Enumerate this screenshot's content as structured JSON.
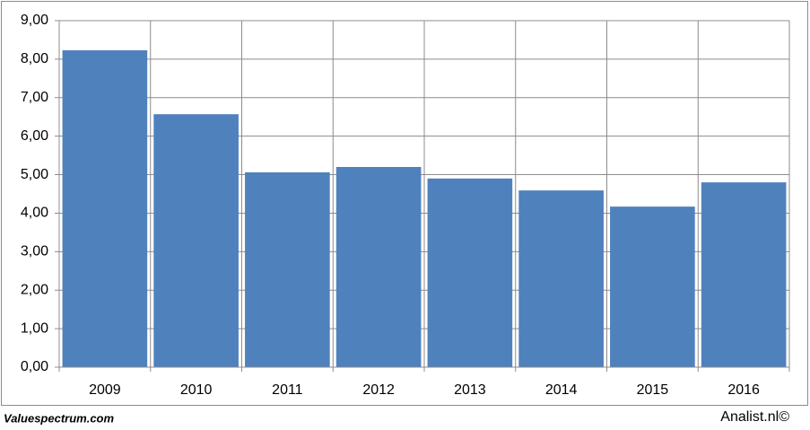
{
  "chart_data": {
    "type": "bar",
    "categories": [
      "2009",
      "2010",
      "2011",
      "2012",
      "2013",
      "2014",
      "2015",
      "2016"
    ],
    "values": [
      8.23,
      6.57,
      5.06,
      5.2,
      4.9,
      4.59,
      4.17,
      4.8
    ],
    "color": "#4f81bd",
    "ylim": [
      0,
      9
    ],
    "yticks": [
      {
        "value": 0,
        "label": "0,00"
      },
      {
        "value": 1,
        "label": "1,00"
      },
      {
        "value": 2,
        "label": "2,00"
      },
      {
        "value": 3,
        "label": "3,00"
      },
      {
        "value": 4,
        "label": "4,00"
      },
      {
        "value": 5,
        "label": "5,00"
      },
      {
        "value": 6,
        "label": "6,00"
      },
      {
        "value": 7,
        "label": "7,00"
      },
      {
        "value": 8,
        "label": "8,00"
      },
      {
        "value": 9,
        "label": "9,00"
      }
    ],
    "grid": true,
    "annotations": [
      "Valuespectrum.com",
      "Analist.nl©"
    ]
  }
}
